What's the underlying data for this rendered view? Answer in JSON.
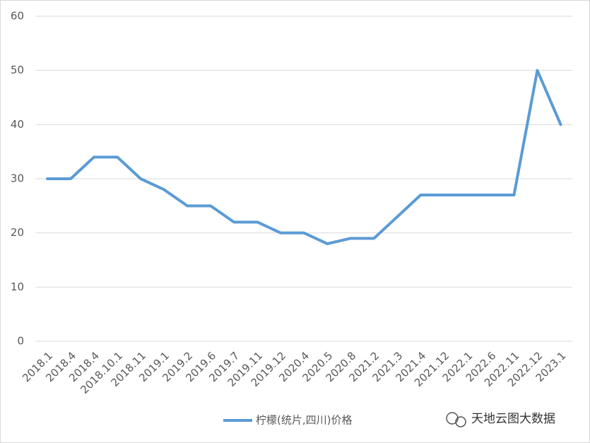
{
  "chart_data": {
    "type": "line",
    "categories": [
      "2018.1",
      "2018.4",
      "2018.4",
      "2018.10.1",
      "2018.11",
      "2019.1",
      "2019.2",
      "2019.6",
      "2019.7",
      "2019.11",
      "2019.12",
      "2020.4",
      "2020.5",
      "2020.8",
      "2021.2",
      "2021.3",
      "2021.4",
      "2021.12",
      "2022.1",
      "2022.6",
      "2022.11",
      "2022.12",
      "2023.1"
    ],
    "series": [
      {
        "name": "柠檬(统片,四川)价格",
        "color": "#5b9bd5",
        "values": [
          30,
          30,
          34,
          34,
          30,
          28,
          25,
          25,
          22,
          22,
          20,
          20,
          18,
          19,
          19,
          23,
          27,
          27,
          27,
          27,
          27,
          50,
          40
        ]
      }
    ],
    "ylim": [
      0,
      60
    ],
    "yticks": [
      0,
      10,
      20,
      30,
      40,
      50,
      60
    ],
    "grid": true,
    "legend": "bottom",
    "annotation": "天地云图大数据"
  }
}
